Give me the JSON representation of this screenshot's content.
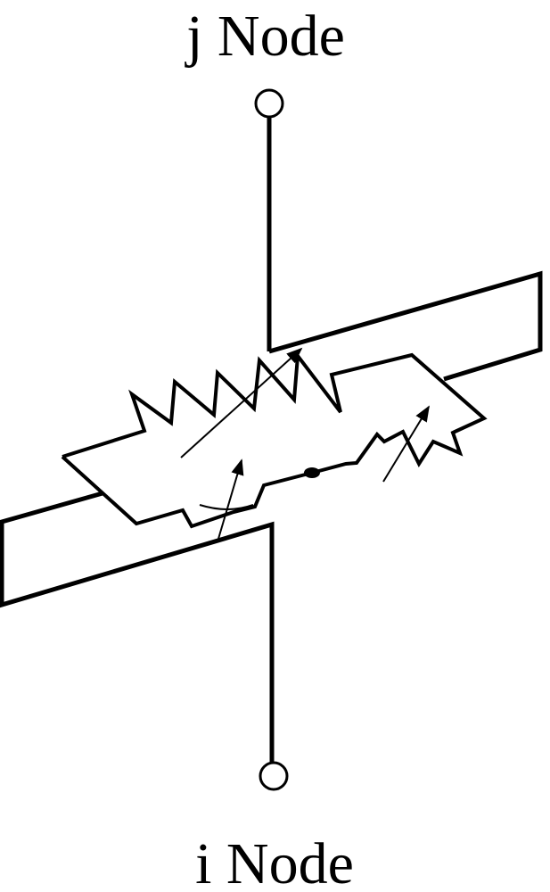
{
  "diagram": {
    "top_node_label": "j Node",
    "bottom_node_label": "i Node"
  },
  "colors": {
    "stroke": "#000000",
    "background": "#ffffff"
  }
}
